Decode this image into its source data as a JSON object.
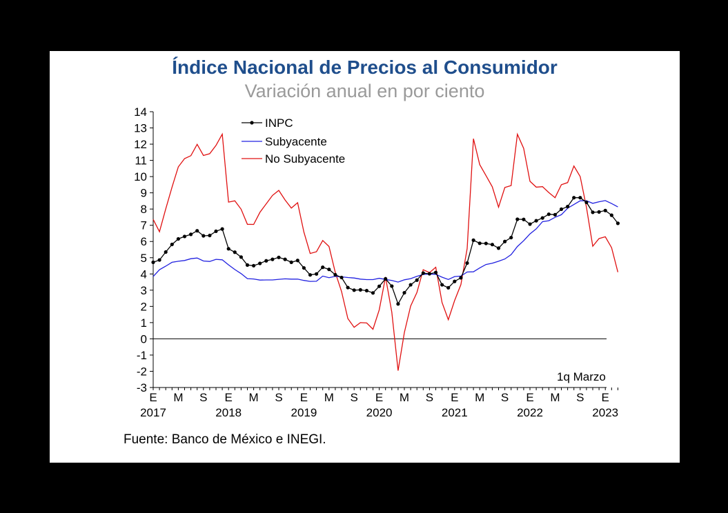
{
  "title": "Índice Nacional de Precios al Consumidor",
  "subtitle": "Variación anual en por ciento",
  "source": "Fuente: Banco de México e INEGI.",
  "chart_data": {
    "type": "line",
    "annotation": "1q Marzo",
    "ylim": [
      -3,
      14
    ],
    "yticks": [
      14,
      13,
      12,
      11,
      10,
      9,
      8,
      7,
      6,
      5,
      4,
      3,
      2,
      1,
      0,
      -1,
      -2,
      -3
    ],
    "month_ticks": [
      {
        "label": "E",
        "index": 0
      },
      {
        "label": "M",
        "index": 4
      },
      {
        "label": "S",
        "index": 8
      },
      {
        "label": "E",
        "index": 12
      },
      {
        "label": "M",
        "index": 16
      },
      {
        "label": "S",
        "index": 20
      },
      {
        "label": "E",
        "index": 24
      },
      {
        "label": "M",
        "index": 28
      },
      {
        "label": "S",
        "index": 32
      },
      {
        "label": "E",
        "index": 36
      },
      {
        "label": "M",
        "index": 40
      },
      {
        "label": "S",
        "index": 44
      },
      {
        "label": "E",
        "index": 48
      },
      {
        "label": "M",
        "index": 52
      },
      {
        "label": "S",
        "index": 56
      },
      {
        "label": "E",
        "index": 60
      },
      {
        "label": "M",
        "index": 64
      },
      {
        "label": "S",
        "index": 68
      },
      {
        "label": "E",
        "index": 72
      }
    ],
    "year_ticks": [
      {
        "label": "2017",
        "index": 0
      },
      {
        "label": "2018",
        "index": 12
      },
      {
        "label": "2019",
        "index": 24
      },
      {
        "label": "2020",
        "index": 36
      },
      {
        "label": "2021",
        "index": 48
      },
      {
        "label": "2022",
        "index": 60
      },
      {
        "label": "2023",
        "index": 72
      }
    ],
    "legend_position": "top-left",
    "series": [
      {
        "name": "INPC",
        "color": "#000000",
        "markers": true,
        "values": [
          4.72,
          4.86,
          5.35,
          5.82,
          6.16,
          6.31,
          6.44,
          6.66,
          6.35,
          6.37,
          6.63,
          6.77,
          5.55,
          5.34,
          5.04,
          4.55,
          4.51,
          4.65,
          4.81,
          4.9,
          5.02,
          4.9,
          4.72,
          4.83,
          4.37,
          3.94,
          4.0,
          4.41,
          4.28,
          3.95,
          3.78,
          3.16,
          3.0,
          3.02,
          2.97,
          2.83,
          3.24,
          3.7,
          3.25,
          2.15,
          2.84,
          3.33,
          3.62,
          4.05,
          4.01,
          4.09,
          3.33,
          3.15,
          3.54,
          3.76,
          4.67,
          6.08,
          5.89,
          5.88,
          5.81,
          5.59,
          6.0,
          6.24,
          7.37,
          7.36,
          7.07,
          7.28,
          7.45,
          7.68,
          7.65,
          7.99,
          8.15,
          8.7,
          8.7,
          8.41,
          7.8,
          7.82,
          7.91,
          7.62,
          7.12
        ]
      },
      {
        "name": "Subyacente",
        "color": "#2020E0",
        "markers": false,
        "values": [
          3.84,
          4.26,
          4.48,
          4.72,
          4.78,
          4.83,
          4.94,
          4.98,
          4.8,
          4.77,
          4.9,
          4.87,
          4.56,
          4.27,
          4.02,
          3.71,
          3.69,
          3.62,
          3.63,
          3.63,
          3.67,
          3.7,
          3.68,
          3.68,
          3.6,
          3.54,
          3.55,
          3.87,
          3.77,
          3.85,
          3.82,
          3.78,
          3.75,
          3.68,
          3.65,
          3.65,
          3.73,
          3.66,
          3.6,
          3.5,
          3.64,
          3.71,
          3.85,
          3.97,
          3.99,
          3.98,
          3.8,
          3.66,
          3.84,
          3.87,
          4.12,
          4.13,
          4.37,
          4.58,
          4.66,
          4.78,
          4.92,
          5.19,
          5.69,
          6.05,
          6.47,
          6.78,
          7.22,
          7.28,
          7.49,
          7.65,
          8.05,
          8.28,
          8.51,
          8.51,
          8.35,
          8.45,
          8.52,
          8.34,
          8.13
        ]
      },
      {
        "name": "No Subyacente",
        "color": "#E01010",
        "markers": false,
        "values": [
          7.36,
          6.6,
          8.01,
          9.35,
          10.6,
          11.11,
          11.29,
          11.99,
          11.3,
          11.41,
          11.92,
          12.62,
          8.43,
          8.51,
          7.99,
          7.06,
          7.05,
          7.8,
          8.32,
          8.84,
          9.15,
          8.56,
          8.06,
          8.39,
          6.58,
          5.26,
          5.37,
          6.06,
          5.69,
          4.09,
          2.91,
          1.25,
          0.71,
          1.0,
          0.98,
          0.59,
          1.79,
          3.81,
          1.64,
          -1.96,
          0.39,
          2.02,
          2.86,
          4.26,
          4.08,
          4.41,
          2.24,
          1.18,
          2.36,
          3.34,
          5.57,
          12.34,
          10.74,
          10.06,
          9.37,
          8.12,
          9.33,
          9.45,
          12.61,
          11.74,
          9.71,
          9.35,
          9.38,
          9.02,
          8.7,
          9.5,
          9.63,
          10.65,
          10.0,
          8.1,
          5.71,
          6.18,
          6.29,
          5.62,
          4.11
        ]
      }
    ]
  }
}
